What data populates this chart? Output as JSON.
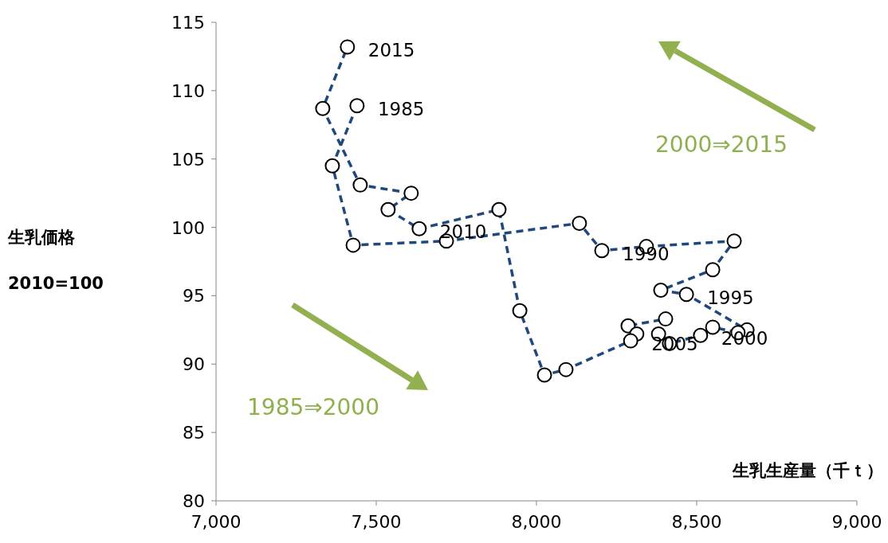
{
  "chart_data": {
    "type": "line",
    "xlabel": "生乳生産量（千ｔ）",
    "ylabel": "生乳価格\n2010=100",
    "xlim": [
      7000,
      9000
    ],
    "ylim": [
      80,
      115
    ],
    "xticks": [
      {
        "value": 7000,
        "label": "7,000"
      },
      {
        "value": 7500,
        "label": "7,500"
      },
      {
        "value": 8000,
        "label": "8,000"
      },
      {
        "value": 8500,
        "label": "8,500"
      },
      {
        "value": 9000,
        "label": "9,000"
      }
    ],
    "yticks": [
      80,
      85,
      90,
      95,
      100,
      105,
      110,
      115
    ],
    "marker": "circle",
    "line_style": "dashed",
    "series": [
      {
        "color": "#1f497d",
        "x": [
          7440,
          7363,
          7428,
          7719,
          8134,
          8204,
          8343,
          8617,
          8550,
          8388,
          8468,
          8657,
          8629,
          8550,
          8512,
          8415,
          8381,
          8403,
          8286,
          8313,
          8294,
          8092,
          8025,
          7948,
          7883,
          7634,
          7537,
          7609,
          7450,
          7333,
          7410
        ],
        "values": [
          108.9,
          104.5,
          98.7,
          99.0,
          100.3,
          98.3,
          98.6,
          99.0,
          96.9,
          95.4,
          95.1,
          92.5,
          92.3,
          92.7,
          92.1,
          91.5,
          92.2,
          93.3,
          92.8,
          92.2,
          91.7,
          89.6,
          89.2,
          93.9,
          101.3,
          99.9,
          101.3,
          102.5,
          103.1,
          108.7,
          113.2
        ]
      }
    ],
    "annotations": [
      {
        "text": "1985",
        "x": 7440,
        "y": 108.9
      },
      {
        "text": "1990",
        "x": 8204,
        "y": 98.3
      },
      {
        "text": "1995",
        "x": 8468,
        "y": 95.1
      },
      {
        "text": "2000",
        "x": 8512,
        "y": 92.1
      },
      {
        "text": "2005",
        "x": 8294,
        "y": 91.7
      },
      {
        "text": "2010",
        "x": 7634,
        "y": 99.9
      },
      {
        "text": "2015",
        "x": 7410,
        "y": 113.2
      },
      "2000⇒2015",
      "1985⇒2000"
    ]
  }
}
